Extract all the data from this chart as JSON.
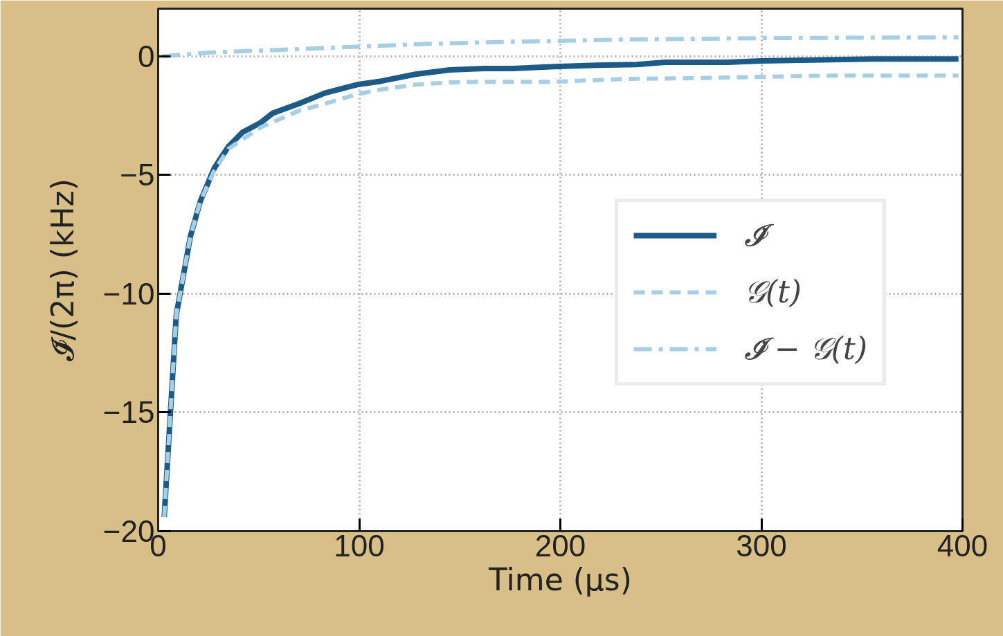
{
  "chart_data": {
    "type": "line",
    "xlabel": "Time (μs)",
    "ylabel": "𝓘̇/(2π) (kHz)",
    "xlim": [
      0,
      400
    ],
    "ylim": [
      -20,
      2
    ],
    "xticks": [
      0,
      100,
      200,
      300,
      400
    ],
    "yticks": [
      -20,
      -15,
      -10,
      -5,
      0
    ],
    "grid": true,
    "legend": "right",
    "series": [
      {
        "name": "𝓘̇",
        "color": "#1c5a87",
        "line_style": "solid",
        "x": [
          3,
          9,
          16,
          21,
          28,
          35,
          42,
          51,
          57,
          70,
          83,
          99,
          111,
          128,
          145,
          162,
          176,
          197,
          218,
          238,
          252,
          283,
          300,
          335,
          355,
          376,
          398
        ],
        "values": [
          -19.4,
          -10.9,
          -7.6,
          -6.1,
          -4.7,
          -3.8,
          -3.2,
          -2.8,
          -2.4,
          -2.0,
          -1.55,
          -1.2,
          -1.05,
          -0.76,
          -0.58,
          -0.52,
          -0.52,
          -0.44,
          -0.38,
          -0.35,
          -0.26,
          -0.26,
          -0.2,
          -0.15,
          -0.12,
          -0.12,
          -0.12
        ]
      },
      {
        "name": "𝒢(t)",
        "color": "#a6cfe5",
        "line_style": "dashed",
        "x": [
          3,
          9,
          16,
          21,
          28,
          35,
          42,
          51,
          70,
          83,
          99,
          111,
          128,
          145,
          162,
          197,
          231,
          266,
          300,
          335,
          398
        ],
        "values": [
          -19.4,
          -10.9,
          -7.6,
          -6.1,
          -4.8,
          -3.9,
          -3.5,
          -3.0,
          -2.3,
          -2.0,
          -1.6,
          -1.4,
          -1.2,
          -1.1,
          -1.08,
          -1.08,
          -0.96,
          -0.93,
          -0.87,
          -0.82,
          -0.82
        ]
      },
      {
        "name": "𝓘̇ − 𝒢(t)",
        "color": "#a6cfe5",
        "line_style": "dashdot",
        "x": [
          2,
          25,
          59,
          99,
          128,
          162,
          197,
          231,
          266,
          300,
          398
        ],
        "values": [
          0,
          0.15,
          0.26,
          0.4,
          0.5,
          0.58,
          0.64,
          0.7,
          0.73,
          0.76,
          0.79
        ]
      }
    ]
  }
}
